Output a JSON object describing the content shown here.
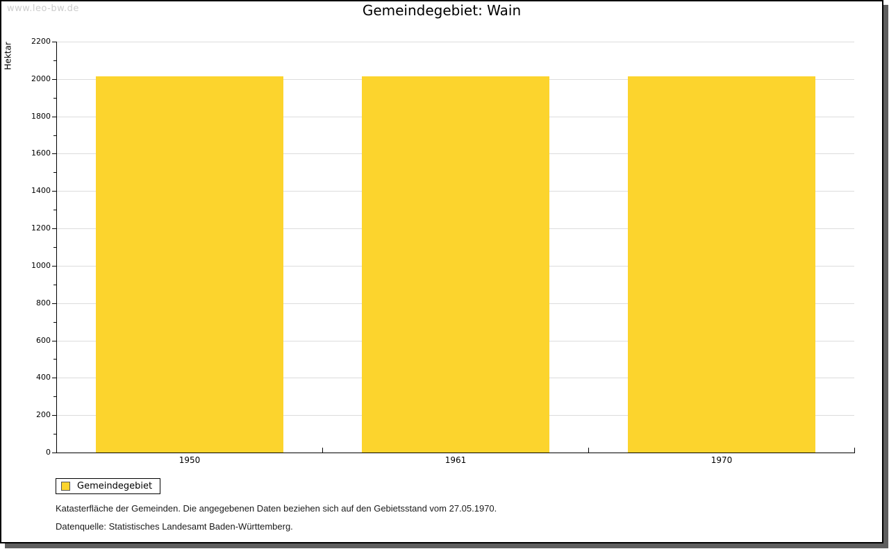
{
  "watermark": "www.leo-bw.de",
  "title": "Gemeindegebiet: Wain",
  "chart_data": {
    "type": "bar",
    "title": "Gemeindegebiet: Wain",
    "categories": [
      "1950",
      "1961",
      "1970"
    ],
    "series": [
      {
        "name": "Gemeindegebiet",
        "color": "#fcd42d",
        "values": [
          2015,
          2015,
          2015
        ]
      }
    ],
    "xlabel": "",
    "ylabel": "Hektar",
    "ylim": [
      0,
      2200
    ],
    "ytick_major": 200,
    "ytick_minor": 100,
    "grid": "horizontal-major",
    "legend_position": "bottom-left"
  },
  "legend": {
    "label": "Gemeindegebiet",
    "swatch_color": "#fcd42d"
  },
  "footnotes": [
    "Katasterfläche der Gemeinden. Die angegebenen Daten beziehen sich auf den Gebietsstand vom 27.05.1970.",
    "Datenquelle: Statistisches Landesamt Baden-Württemberg."
  ]
}
